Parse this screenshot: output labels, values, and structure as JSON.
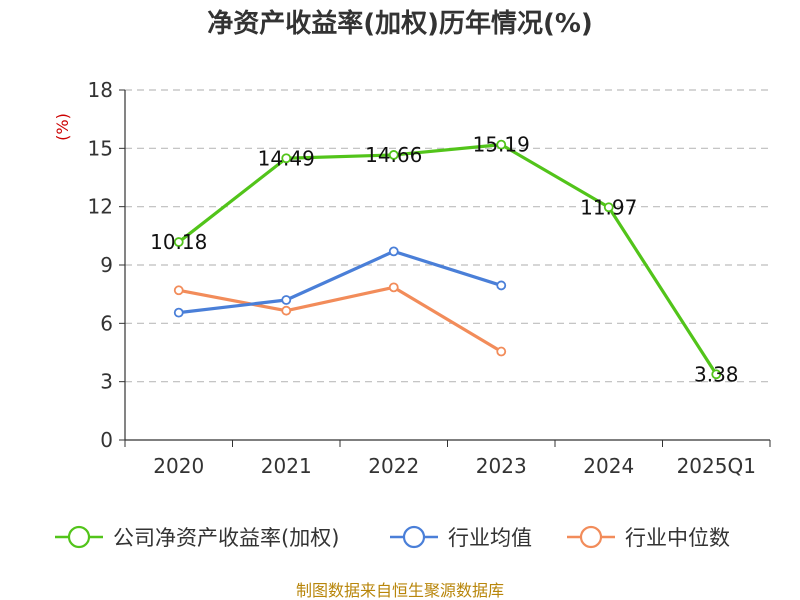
{
  "chart_data": {
    "type": "line",
    "title": "净资产收益率(加权)历年情况(%)",
    "y_unit": "(%)",
    "categories": [
      "2020",
      "2021",
      "2022",
      "2023",
      "2024",
      "2025Q1"
    ],
    "ylim": [
      0,
      18
    ],
    "yticks": [
      "0",
      "3",
      "6",
      "9",
      "12",
      "15",
      "18"
    ],
    "grid": true,
    "legend_position": "bottom",
    "series": [
      {
        "name": "公司净资产收益率(加权)",
        "color": "#52c41a",
        "values": [
          10.18,
          14.49,
          14.66,
          15.19,
          11.97,
          3.38
        ],
        "labels": [
          "10.18",
          "14.49",
          "14.66",
          "15.19",
          "11.97",
          "3.38"
        ]
      },
      {
        "name": "行业均值",
        "color": "#4a7fd8",
        "values": [
          6.55,
          7.2,
          9.7,
          7.95,
          null,
          null
        ]
      },
      {
        "name": "行业中位数",
        "color": "#f28c5a",
        "values": [
          7.7,
          6.65,
          7.85,
          4.55,
          null,
          null
        ]
      }
    ]
  },
  "source": "制图数据来自恒生聚源数据库"
}
